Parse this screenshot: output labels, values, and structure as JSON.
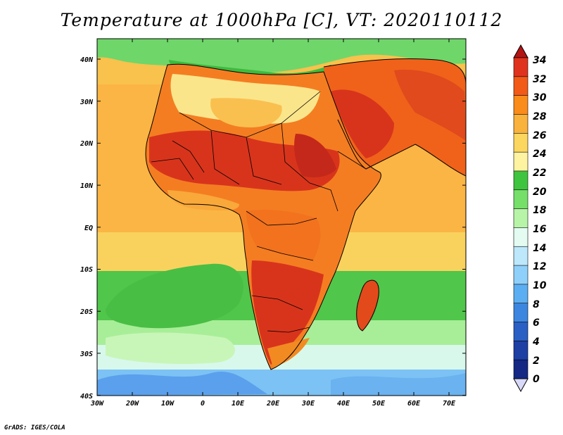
{
  "title": "Temperature at 1000hPa [C], VT: 2020110112",
  "credit": "GrADS: IGES/COLA",
  "map": {
    "lon_labels": [
      "30W",
      "20W",
      "10W",
      "0",
      "10E",
      "20E",
      "30E",
      "40E",
      "50E",
      "60E",
      "70E"
    ],
    "lat_labels": [
      "40N",
      "30N",
      "20N",
      "10N",
      "EQ",
      "10S",
      "20S",
      "30S",
      "40S"
    ]
  },
  "colorbar": {
    "labels": [
      "34",
      "32",
      "30",
      "28",
      "26",
      "24",
      "22",
      "20",
      "18",
      "16",
      "14",
      "12",
      "10",
      "8",
      "6",
      "4",
      "2",
      "0"
    ],
    "colors": [
      "#e0331e",
      "#f25a18",
      "#fa8c1c",
      "#f9b23c",
      "#fbd760",
      "#fdf3a0",
      "#3fc43f",
      "#76df6a",
      "#b7f4a8",
      "#e3fbf0",
      "#bde8fb",
      "#8fd0fa",
      "#5caef2",
      "#3c86e0",
      "#2a5fc4",
      "#1e3fa4",
      "#142884"
    ],
    "top_arrow_color": "#b41414",
    "bottom_arrow_color": "#d8d8f8"
  },
  "colors": {
    "ocean_warm": "#fbba4a",
    "ocean_mid": "#f8cf60",
    "ocean_cool": "#7ad97a",
    "ocean_cold": "#5aa4ee",
    "land_hot": "#d8341c",
    "land_warm": "#f26a1a",
    "desert": "#fbe58a",
    "med_sea": "#52c44c"
  }
}
